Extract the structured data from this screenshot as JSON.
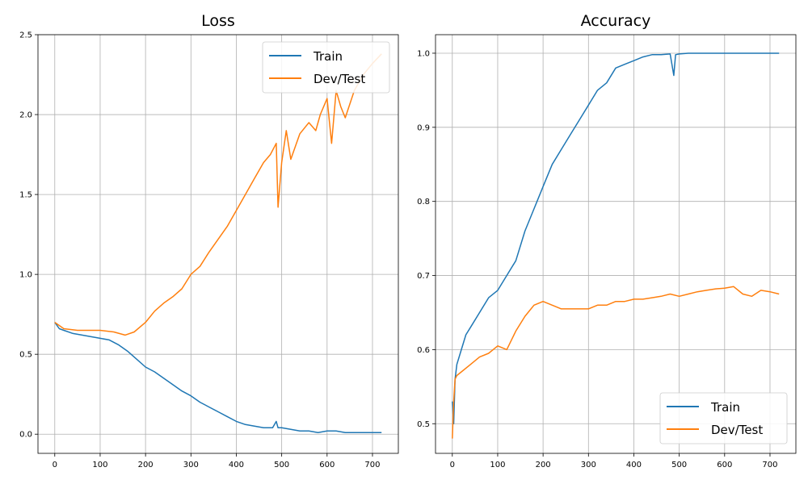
{
  "chart_data": [
    {
      "type": "line",
      "title": "Loss",
      "xlabel": "",
      "ylabel": "",
      "xlim": [
        -37,
        757
      ],
      "ylim": [
        -0.12,
        2.5
      ],
      "xticks": [
        0,
        100,
        200,
        300,
        400,
        500,
        600,
        700
      ],
      "xtick_labels": [
        "0",
        "100",
        "200",
        "300",
        "400",
        "500",
        "600",
        "700"
      ],
      "yticks": [
        0.0,
        0.5,
        1.0,
        1.5,
        2.0,
        2.5
      ],
      "ytick_labels": [
        "0.0",
        "0.5",
        "1.0",
        "1.5",
        "2.0",
        "2.5"
      ],
      "grid": true,
      "legend": "upper-right",
      "series": [
        {
          "name": "Train",
          "color": "#1f77b4",
          "x": [
            0,
            10,
            20,
            40,
            60,
            80,
            100,
            120,
            140,
            160,
            180,
            200,
            220,
            240,
            260,
            280,
            300,
            320,
            340,
            360,
            380,
            400,
            420,
            440,
            460,
            480,
            488,
            492,
            500,
            520,
            540,
            560,
            580,
            600,
            620,
            640,
            660,
            680,
            700,
            720
          ],
          "y": [
            0.7,
            0.66,
            0.65,
            0.63,
            0.62,
            0.61,
            0.6,
            0.59,
            0.56,
            0.52,
            0.47,
            0.42,
            0.39,
            0.35,
            0.31,
            0.27,
            0.24,
            0.2,
            0.17,
            0.14,
            0.11,
            0.08,
            0.06,
            0.05,
            0.04,
            0.04,
            0.08,
            0.04,
            0.04,
            0.03,
            0.02,
            0.02,
            0.01,
            0.02,
            0.02,
            0.01,
            0.01,
            0.01,
            0.01,
            0.01
          ]
        },
        {
          "name": "Dev/Test",
          "color": "#ff7f0e",
          "x": [
            0,
            20,
            50,
            100,
            130,
            155,
            175,
            200,
            220,
            240,
            260,
            280,
            300,
            320,
            340,
            360,
            380,
            400,
            420,
            440,
            460,
            475,
            488,
            492,
            500,
            510,
            520,
            540,
            560,
            575,
            585,
            600,
            610,
            620,
            630,
            640,
            660,
            680,
            700,
            720
          ],
          "y": [
            0.7,
            0.66,
            0.65,
            0.65,
            0.64,
            0.62,
            0.64,
            0.7,
            0.77,
            0.82,
            0.86,
            0.91,
            1.0,
            1.05,
            1.14,
            1.22,
            1.3,
            1.4,
            1.5,
            1.6,
            1.7,
            1.75,
            1.82,
            1.42,
            1.7,
            1.9,
            1.72,
            1.88,
            1.95,
            1.9,
            2.0,
            2.1,
            1.82,
            2.15,
            2.05,
            1.98,
            2.15,
            2.25,
            2.32,
            2.38
          ]
        }
      ]
    },
    {
      "type": "line",
      "title": "Accuracy",
      "xlabel": "",
      "ylabel": "",
      "xlim": [
        -37,
        757
      ],
      "ylim": [
        0.46,
        1.025
      ],
      "xticks": [
        0,
        100,
        200,
        300,
        400,
        500,
        600,
        700
      ],
      "xtick_labels": [
        "0",
        "100",
        "200",
        "300",
        "400",
        "500",
        "600",
        "700"
      ],
      "yticks": [
        0.5,
        0.6,
        0.7,
        0.8,
        0.9,
        1.0
      ],
      "ytick_labels": [
        "0.5",
        "0.6",
        "0.7",
        "0.8",
        "0.9",
        "1.0"
      ],
      "grid": true,
      "legend": "lower-right",
      "series": [
        {
          "name": "Train",
          "color": "#1f77b4",
          "x": [
            0,
            3,
            6,
            10,
            20,
            30,
            40,
            60,
            80,
            100,
            120,
            140,
            160,
            180,
            200,
            220,
            240,
            260,
            280,
            300,
            320,
            340,
            360,
            380,
            400,
            420,
            440,
            460,
            480,
            488,
            492,
            500,
            520,
            540,
            560,
            580,
            600,
            620,
            640,
            660,
            680,
            700,
            720
          ],
          "y": [
            0.53,
            0.5,
            0.56,
            0.58,
            0.6,
            0.62,
            0.63,
            0.65,
            0.67,
            0.68,
            0.7,
            0.72,
            0.76,
            0.79,
            0.82,
            0.85,
            0.87,
            0.89,
            0.91,
            0.93,
            0.95,
            0.96,
            0.98,
            0.985,
            0.99,
            0.995,
            0.998,
            0.998,
            0.999,
            0.97,
            0.998,
            0.999,
            1.0,
            1.0,
            1.0,
            1.0,
            1.0,
            1.0,
            1.0,
            1.0,
            1.0,
            1.0,
            1.0
          ]
        },
        {
          "name": "Dev/Test",
          "color": "#ff7f0e",
          "x": [
            0,
            3,
            6,
            10,
            20,
            40,
            60,
            80,
            100,
            120,
            140,
            160,
            180,
            200,
            220,
            240,
            260,
            280,
            300,
            320,
            340,
            360,
            380,
            400,
            420,
            440,
            460,
            480,
            500,
            520,
            540,
            560,
            580,
            600,
            620,
            640,
            660,
            680,
            700,
            720
          ],
          "y": [
            0.48,
            0.53,
            0.56,
            0.565,
            0.57,
            0.58,
            0.59,
            0.595,
            0.605,
            0.6,
            0.625,
            0.645,
            0.66,
            0.665,
            0.66,
            0.655,
            0.655,
            0.655,
            0.655,
            0.66,
            0.66,
            0.665,
            0.665,
            0.668,
            0.668,
            0.67,
            0.672,
            0.675,
            0.672,
            0.675,
            0.678,
            0.68,
            0.682,
            0.683,
            0.685,
            0.675,
            0.672,
            0.68,
            0.678,
            0.675
          ]
        }
      ]
    }
  ]
}
